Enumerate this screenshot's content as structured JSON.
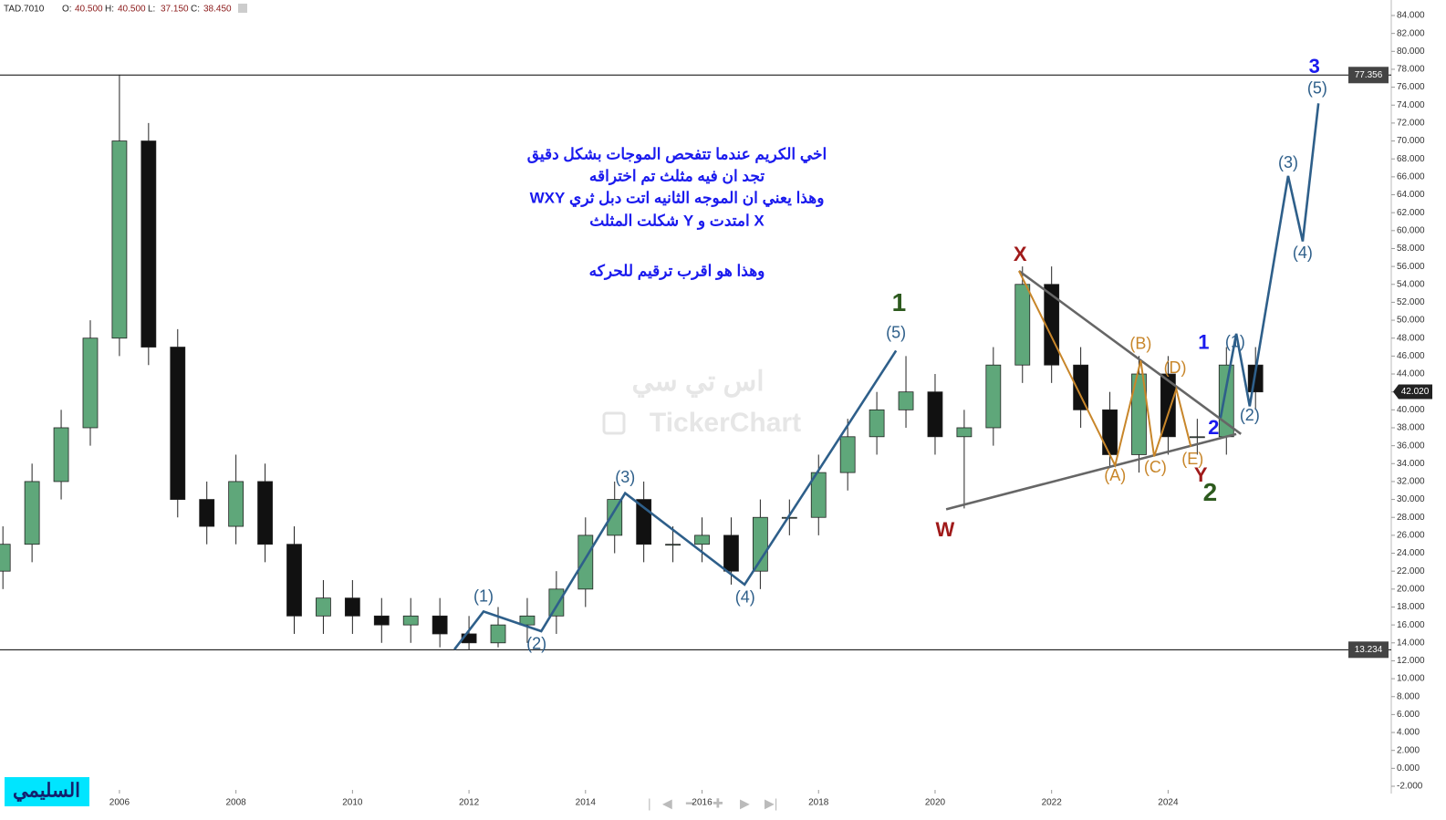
{
  "header": {
    "symbol": "TAD.7010",
    "fields": [
      {
        "label": "O:",
        "value": "40.500"
      },
      {
        "label": "H:",
        "value": "40.500"
      },
      {
        "label": "L:",
        "value": "37.150"
      },
      {
        "label": "C:",
        "value": "38.450"
      }
    ]
  },
  "chart_data": {
    "type": "candlestick",
    "xlim": [
      2003.95,
      2027.83
    ],
    "ylim": [
      -2,
      84
    ],
    "xticks": [
      2006,
      2008,
      2010,
      2012,
      2014,
      2016,
      2018,
      2020,
      2022,
      2024
    ],
    "yticks": [
      {
        "value": -2,
        "label": "-2.000"
      },
      {
        "value": 0,
        "label": "0.000"
      },
      {
        "value": 2,
        "label": "2.000"
      },
      {
        "value": 4,
        "label": "4.000"
      },
      {
        "value": 6,
        "label": "6.000"
      },
      {
        "value": 8,
        "label": "8.000"
      },
      {
        "value": 10,
        "label": "10.000"
      },
      {
        "value": 12,
        "label": "12.000"
      },
      {
        "value": 14,
        "label": "14.000"
      },
      {
        "value": 16,
        "label": "16.000"
      },
      {
        "value": 18,
        "label": "18.000"
      },
      {
        "value": 20,
        "label": "20.000"
      },
      {
        "value": 22,
        "label": "22.000"
      },
      {
        "value": 24,
        "label": "24.000"
      },
      {
        "value": 26,
        "label": "26.000"
      },
      {
        "value": 28,
        "label": "28.000"
      },
      {
        "value": 30,
        "label": "30.000"
      },
      {
        "value": 32,
        "label": "32.000"
      },
      {
        "value": 34,
        "label": "34.000"
      },
      {
        "value": 36,
        "label": "36.000"
      },
      {
        "value": 38,
        "label": "38.000"
      },
      {
        "value": 40,
        "label": "40.000"
      },
      {
        "value": 42,
        "label": "42.000"
      },
      {
        "value": 44,
        "label": "44.000"
      },
      {
        "value": 46,
        "label": "46.000"
      },
      {
        "value": 48,
        "label": "48.000"
      },
      {
        "value": 50,
        "label": "50.000"
      },
      {
        "value": 52,
        "label": "52.000"
      },
      {
        "value": 54,
        "label": "54.000"
      },
      {
        "value": 56,
        "label": "56.000"
      },
      {
        "value": 58,
        "label": "58.000"
      },
      {
        "value": 60,
        "label": "60.000"
      },
      {
        "value": 62,
        "label": "62.000"
      },
      {
        "value": 64,
        "label": "64.000"
      },
      {
        "value": 66,
        "label": "66.000"
      },
      {
        "value": 68,
        "label": "68.000"
      },
      {
        "value": 70,
        "label": "70.000"
      },
      {
        "value": 72,
        "label": "72.000"
      },
      {
        "value": 74,
        "label": "74.000"
      },
      {
        "value": 76,
        "label": "76.000"
      },
      {
        "value": 78,
        "label": "78.000"
      },
      {
        "value": 80,
        "label": "80.000"
      },
      {
        "value": 82,
        "label": "82.000"
      },
      {
        "value": 84,
        "label": "84.000"
      }
    ],
    "colors": {
      "up": "#5fa77a",
      "down": "#111111"
    },
    "candles": {
      "x": [
        2004.0,
        2004.5,
        2005.0,
        2005.5,
        2006.0,
        2006.5,
        2007.0,
        2007.5,
        2008.0,
        2008.5,
        2009.0,
        2009.5,
        2010.0,
        2010.5,
        2011.0,
        2011.5,
        2012.0,
        2012.5,
        2013.0,
        2013.5,
        2014.0,
        2014.5,
        2015.0,
        2015.5,
        2016.0,
        2016.5,
        2017.0,
        2017.5,
        2018.0,
        2018.5,
        2019.0,
        2019.5,
        2020.0,
        2020.5,
        2021.0,
        2021.5,
        2022.0,
        2022.5,
        2023.0,
        2023.5,
        2024.0,
        2024.5,
        2025.0,
        2025.5
      ],
      "open": [
        22,
        25,
        32,
        38,
        48,
        70,
        47,
        30,
        27,
        32,
        25,
        17,
        19,
        17,
        16,
        17,
        15,
        14,
        16,
        17,
        20,
        26,
        30,
        25,
        25,
        26,
        22,
        28,
        28,
        33,
        37,
        40,
        42,
        37,
        38,
        45,
        54,
        45,
        40,
        35,
        44,
        37,
        37,
        45
      ],
      "high": [
        27,
        34,
        40,
        50,
        77.4,
        72,
        49,
        32,
        35,
        34,
        27,
        21,
        21,
        19,
        19,
        19,
        17,
        18,
        19,
        22,
        28,
        32,
        32,
        27,
        28,
        28,
        30,
        30,
        35,
        39,
        42,
        46,
        44,
        40,
        47,
        56,
        56,
        47,
        42,
        46,
        46,
        39,
        47,
        47
      ],
      "low": [
        20,
        23,
        30,
        36,
        46,
        45,
        28,
        25,
        25,
        23,
        15,
        15,
        15,
        14,
        14,
        13.5,
        13.234,
        13.5,
        14,
        15,
        18,
        24,
        23,
        23,
        23,
        20.5,
        20,
        26,
        26,
        31,
        35,
        38,
        35,
        29,
        36,
        43,
        43,
        38,
        33.5,
        33,
        35,
        35,
        35,
        40
      ],
      "close": [
        25,
        32,
        38,
        48,
        70,
        47,
        30,
        27,
        32,
        25,
        17,
        19,
        17,
        16,
        17,
        15,
        14,
        16,
        17,
        20,
        26,
        30,
        25,
        25,
        26,
        22,
        28,
        28,
        33,
        37,
        40,
        42,
        37,
        38,
        45,
        54,
        45,
        40,
        35,
        44,
        37,
        37,
        45,
        42
      ]
    },
    "levels": [
      {
        "value": 77.356,
        "label": "77.356"
      },
      {
        "value": 13.234,
        "label": "13.234"
      }
    ],
    "last_price": {
      "value": 42.02,
      "label": "42.020"
    },
    "lines": [
      {
        "color": "#2e5f8a",
        "x": [
          2011.75,
          2012.25,
          2013.24,
          2014.68,
          2016.73,
          2019.33
        ],
        "y": [
          13.27,
          17.5,
          15.3,
          30.7,
          20.5,
          46.6
        ]
      },
      {
        "color": "#666666",
        "x": [
          2021.44,
          2025.25
        ],
        "y": [
          55.5,
          37.3
        ]
      },
      {
        "color": "#666666",
        "x": [
          2020.19,
          2025.17
        ],
        "y": [
          28.9,
          37.3
        ]
      },
      {
        "color": "#c8862a",
        "x": [
          2021.44,
          2023.09,
          2023.53,
          2023.76,
          2024.14,
          2024.39
        ],
        "y": [
          55.5,
          33.8,
          45.5,
          34.8,
          42.3,
          35.9
        ]
      },
      {
        "color": "#2e5f8a",
        "x": [
          2024.9,
          2025.17,
          2025.4,
          2026.06,
          2026.31,
          2026.58
        ],
        "y": [
          39.1,
          48.5,
          40.4,
          66.1,
          58.8,
          74.2
        ]
      }
    ],
    "labels": [
      {
        "text": "(1)",
        "x": 2012.25,
        "y": 19.1,
        "color": "#2e5f8a"
      },
      {
        "text": "(2)",
        "x": 2013.16,
        "y": 13.8,
        "color": "#2e5f8a"
      },
      {
        "text": "(3)",
        "x": 2014.68,
        "y": 32.4,
        "color": "#2e5f8a"
      },
      {
        "text": "(4)",
        "x": 2016.74,
        "y": 19.0,
        "color": "#2e5f8a"
      },
      {
        "text": "(5)",
        "x": 2019.33,
        "y": 48.5,
        "color": "#2e5f8a"
      },
      {
        "text": "1",
        "x": 2019.38,
        "y": 51.8,
        "color": "#2d5a1e"
      },
      {
        "text": "X",
        "x": 2021.46,
        "y": 57.2,
        "color": "#a01a1a"
      },
      {
        "text": "W",
        "x": 2020.17,
        "y": 26.5,
        "color": "#a01a1a"
      },
      {
        "text": "(A)",
        "x": 2023.09,
        "y": 32.6,
        "color": "#c8862a"
      },
      {
        "text": "(B)",
        "x": 2023.53,
        "y": 47.3,
        "color": "#c8862a"
      },
      {
        "text": "(C)",
        "x": 2023.78,
        "y": 33.5,
        "color": "#c8862a"
      },
      {
        "text": "(D)",
        "x": 2024.12,
        "y": 44.6,
        "color": "#c8862a"
      },
      {
        "text": "(E)",
        "x": 2024.42,
        "y": 34.4,
        "color": "#c8862a"
      },
      {
        "text": "Y",
        "x": 2024.56,
        "y": 32.6,
        "color": "#a01a1a"
      },
      {
        "text": "2",
        "x": 2024.72,
        "y": 30.6,
        "color": "#2d5a1e"
      },
      {
        "text": "2",
        "x": 2024.78,
        "y": 37.9,
        "color": "#1a1aee"
      },
      {
        "text": "1",
        "x": 2024.61,
        "y": 47.4,
        "color": "#1a1aee"
      },
      {
        "text": "(1)",
        "x": 2025.15,
        "y": 47.5,
        "color": "#2e5f8a"
      },
      {
        "text": "(2)",
        "x": 2025.4,
        "y": 39.3,
        "color": "#2e5f8a"
      },
      {
        "text": "(3)",
        "x": 2026.06,
        "y": 67.5,
        "color": "#2e5f8a"
      },
      {
        "text": "(4)",
        "x": 2026.31,
        "y": 57.4,
        "color": "#2e5f8a"
      },
      {
        "text": "3",
        "x": 2026.51,
        "y": 78.2,
        "color": "#1a1aee"
      },
      {
        "text": "(5)",
        "x": 2026.56,
        "y": 75.8,
        "color": "#2e5f8a"
      }
    ]
  },
  "notes": [
    "اخي الكريم عندما تتفحص الموجات بشكل دقيق",
    "تجد ان فيه مثلث تم اختراقه",
    "وهذا يعني ان الموجه الثانيه اتت دبل ثري WXY",
    "X امتدت و Y شكلت المثلث",
    "وهذا  هو اقرب ترقيم للحركه"
  ],
  "watermark": [
    "اس تي سي",
    "TickerChart"
  ],
  "author": "السليمي"
}
